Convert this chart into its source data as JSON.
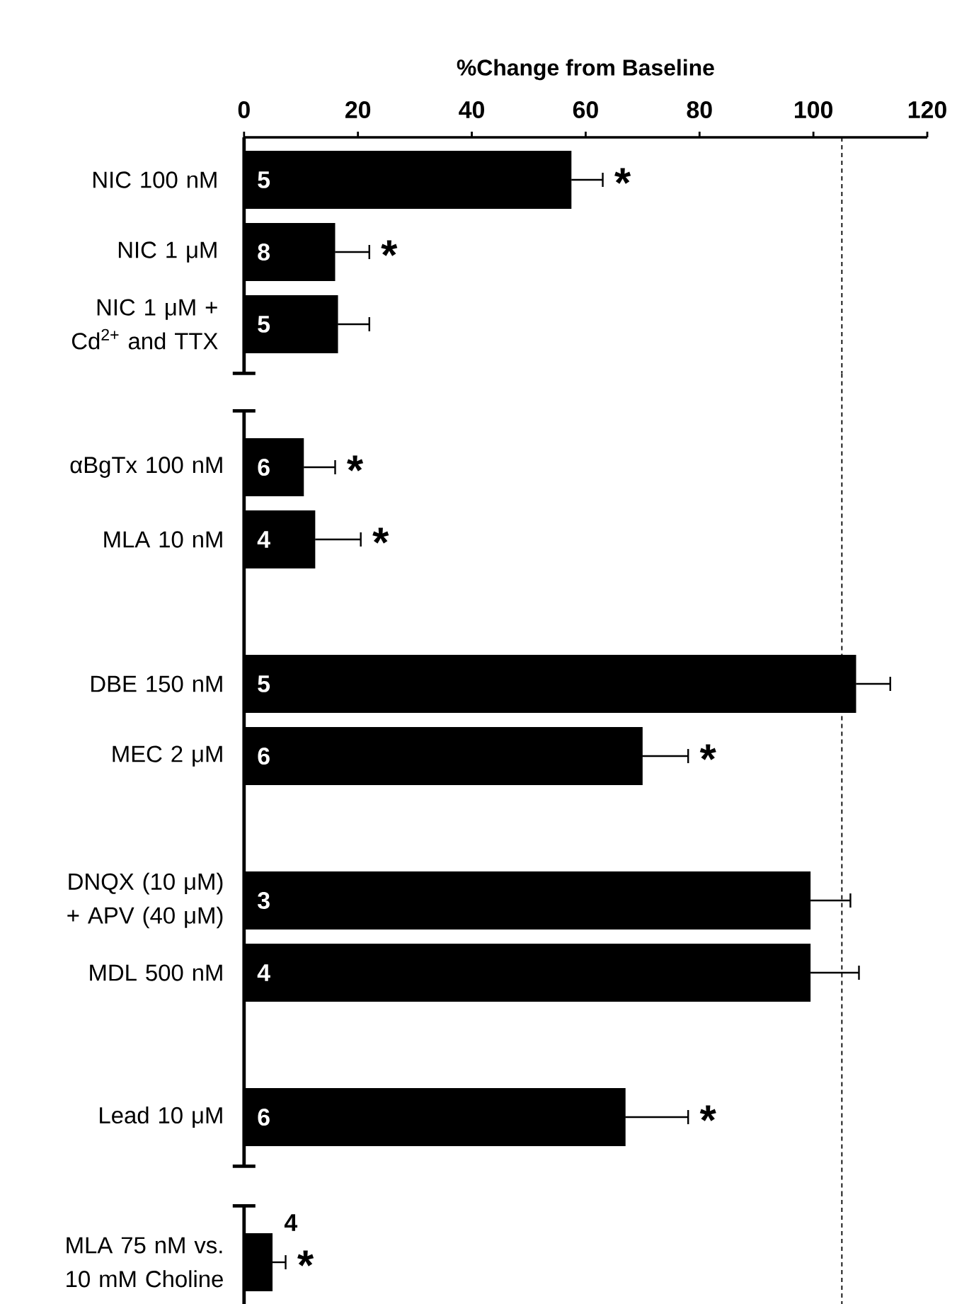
{
  "chart_data": [
    {
      "type": "bar",
      "orientation": "horizontal",
      "xlabel": "%Change from Baseline",
      "categories": [
        "NIC 100 nM",
        "NIC 1 μM",
        "NIC 1 μM + Cd$^{2+}$ and TTX"
      ],
      "values": [
        57.5,
        16,
        16.5
      ],
      "errors": [
        5.5,
        6,
        5.5
      ],
      "color": "#000000",
      "xlim": [
        0,
        120
      ],
      "xticks": [
        0,
        20,
        40,
        60,
        80,
        100,
        120
      ],
      "ref_lines": [
        {
          "axis": "x",
          "value": 105,
          "line_style": "dashed",
          "color": "#000000"
        }
      ],
      "annotations": [
        {
          "text": "5",
          "y": "NIC 100 nM"
        },
        {
          "text": "8",
          "y": "NIC 1 μM"
        },
        {
          "text": "5",
          "y": "NIC 1 μM + Cd$^{2+}$ and TTX"
        },
        {
          "text": "*",
          "x": 57.5,
          "y": "NIC 100 nM"
        },
        {
          "text": "*",
          "x": 16,
          "y": "NIC 1 μM"
        }
      ]
    },
    {
      "type": "bar",
      "orientation": "horizontal",
      "categories": [
        "αBgTx 100 nM",
        "MLA 10 nM",
        null,
        "DBE 150 nM",
        "MEC 2 μM",
        null,
        "DNQX (10 μM) + APV (40 μM)",
        "MDL 500 nM",
        null,
        "Lead 10 μM"
      ],
      "values": [
        10.5,
        12.5,
        null,
        107.5,
        70,
        null,
        99.5,
        99.5,
        null,
        67
      ],
      "errors": [
        5.5,
        8,
        null,
        6,
        8,
        null,
        7,
        8.5,
        null,
        11
      ],
      "color": "#000000",
      "xlim": [
        0,
        120
      ],
      "tick_labels": "y",
      "ref_lines": [
        {
          "axis": "x",
          "value": 105,
          "line_style": "dashed",
          "color": "#000000"
        }
      ],
      "annotations": [
        {
          "text": "6",
          "y": "αBgTx 100 nM"
        },
        {
          "text": "4",
          "y": "MLA 10 nM"
        },
        {
          "text": "5",
          "y": "DBE 150 nM"
        },
        {
          "text": "6",
          "y": "MEC 2 μM"
        },
        {
          "text": "3",
          "y": "DNQX (10 μM) + APV (40 μM)"
        },
        {
          "text": "4",
          "y": "MDL 500 nM"
        },
        {
          "text": "6",
          "y": "Lead 10 μM"
        },
        {
          "text": "*",
          "x": 10.5,
          "y": "αBgTx 100 nM"
        },
        {
          "text": "*",
          "x": 12.5,
          "y": "MLA 10 nM"
        },
        {
          "text": "*",
          "x": 70,
          "y": "MEC 2 μM"
        },
        {
          "text": "*",
          "x": 67,
          "y": "Lead 10 μM"
        }
      ]
    },
    {
      "type": "bar",
      "orientation": "horizontal",
      "categories": [
        "MLA 75 nM vs. 10 mM Choline"
      ],
      "values": [
        5
      ],
      "errors": [
        2.3
      ],
      "color": "#000000",
      "xlim": [
        0,
        120
      ],
      "tick_labels": "y",
      "ref_lines": [
        {
          "axis": "x",
          "value": 105,
          "line_style": "dashed",
          "color": "#000000"
        }
      ],
      "annotations": [
        {
          "text": "4",
          "y": "MLA 75 nM vs. 10 mM Choline"
        },
        {
          "text": "*",
          "x": 5,
          "y": "MLA 75 nM vs. 10 mM Choline"
        }
      ]
    }
  ]
}
